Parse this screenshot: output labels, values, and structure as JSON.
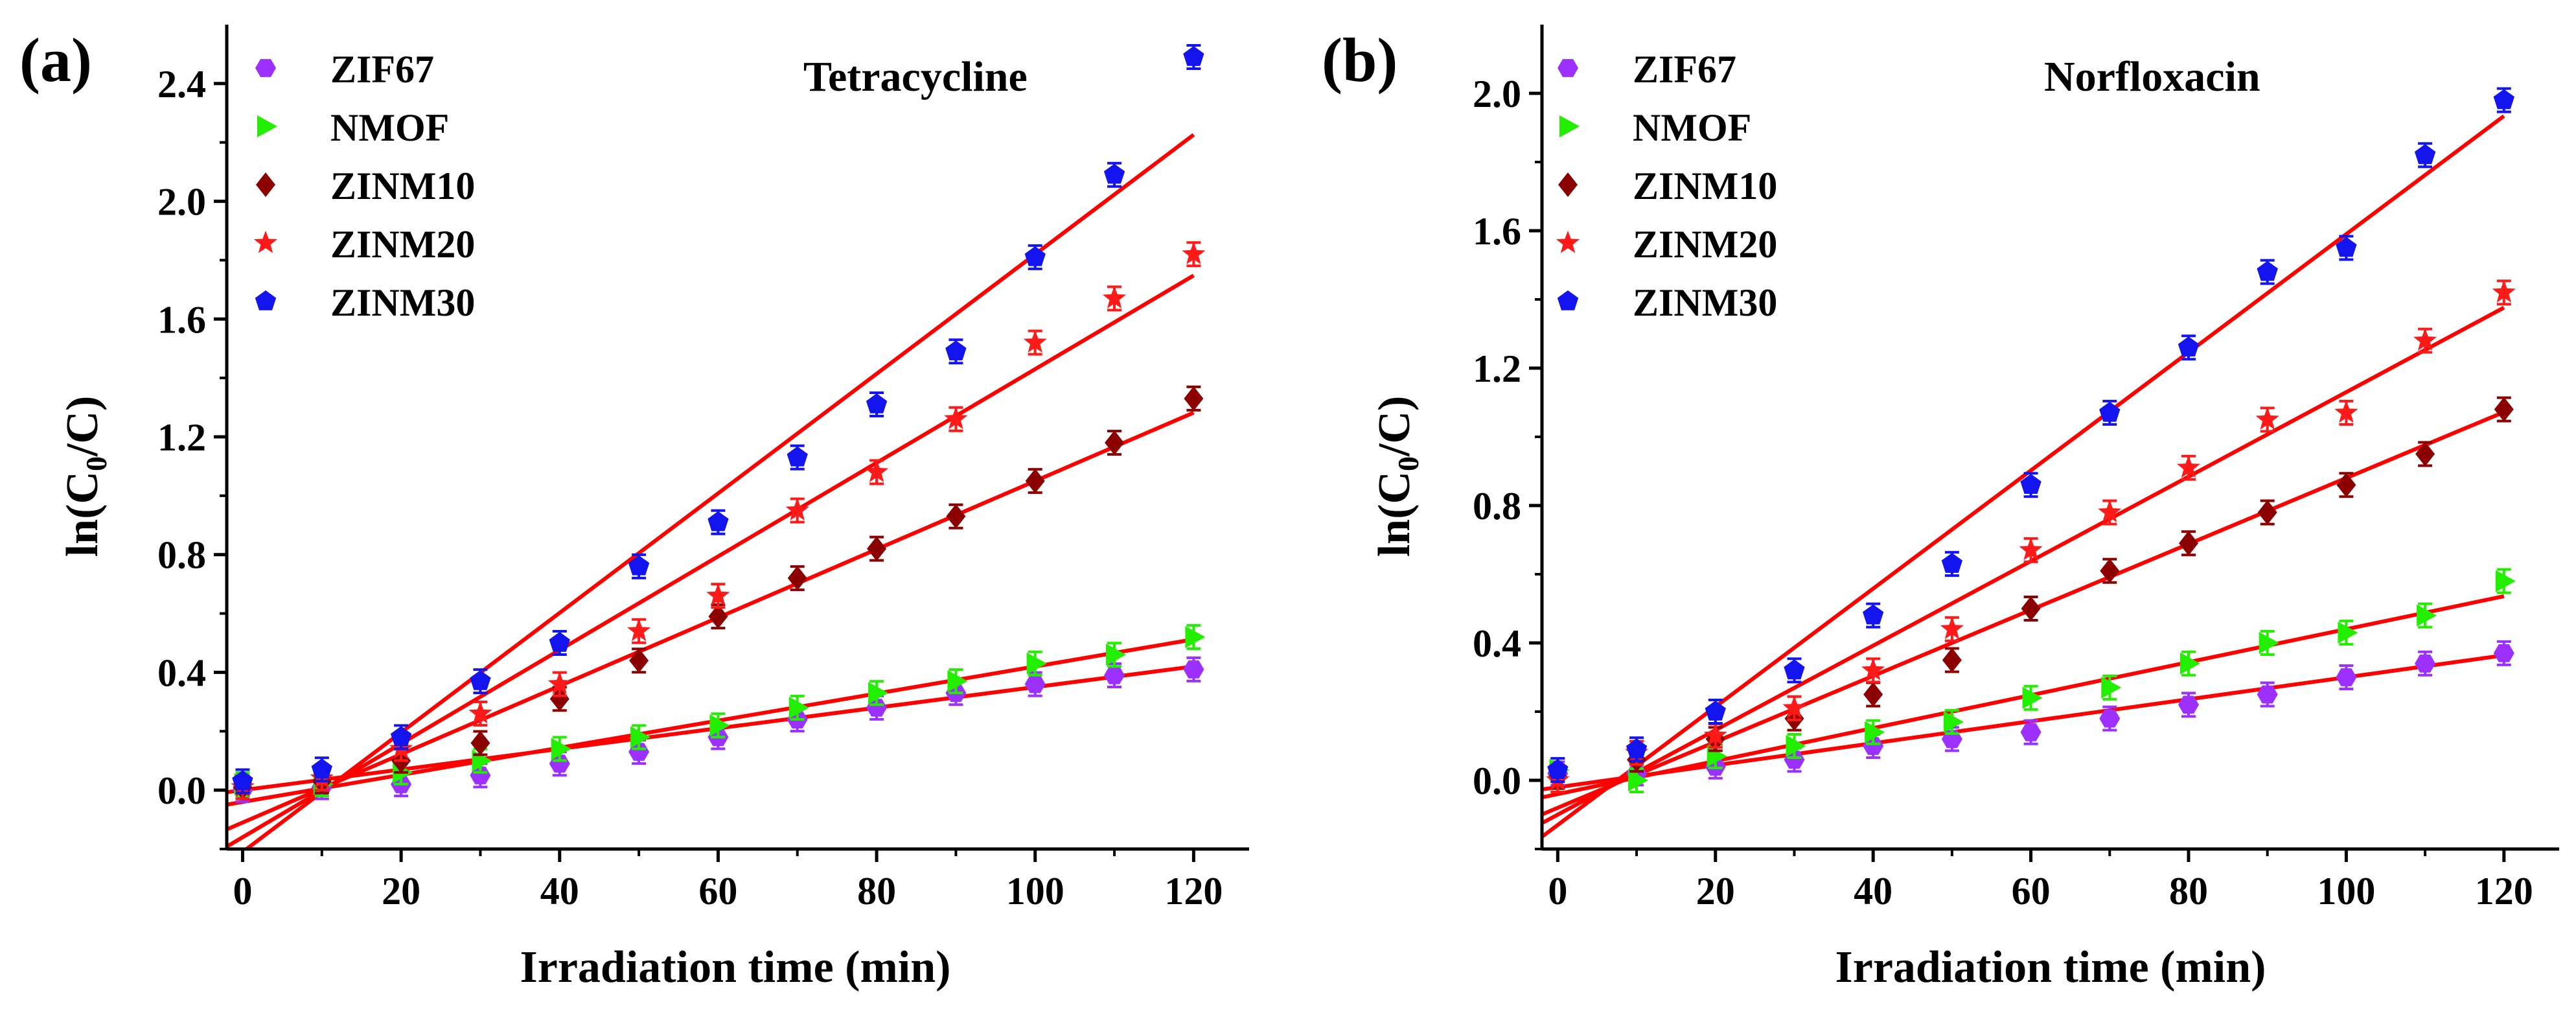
{
  "colors": {
    "fit_line": "#ff0000",
    "axis": "#000000",
    "ZIF67": "#9b30ff",
    "NMOF": "#22ee00",
    "ZINM10": "#8b0000",
    "ZINM20": "#ff1a1a",
    "ZINM30": "#1414ee"
  },
  "chart_data": [
    {
      "type": "scatter",
      "panel_label": "(a)",
      "title": "Tetracycline",
      "xlabel": "Irradiation time (min)",
      "ylabel_main": "ln(C",
      "ylabel_sub": "0",
      "ylabel_tail": "/C)",
      "xlim": [
        -2,
        127
      ],
      "ylim": [
        -0.2,
        2.6
      ],
      "xticks": [
        0,
        20,
        40,
        60,
        80,
        100,
        120
      ],
      "xtick_labels": [
        "0",
        "20",
        "40",
        "60",
        "80",
        "100",
        "120"
      ],
      "yticks": [
        0.0,
        0.4,
        0.8,
        1.2,
        1.6,
        2.0,
        2.4
      ],
      "ytick_labels": [
        "0.0",
        "0.4",
        "0.8",
        "1.2",
        "1.6",
        "2.0",
        "2.4"
      ],
      "legend_position": "top-left",
      "x": [
        0,
        10,
        20,
        30,
        40,
        50,
        60,
        70,
        80,
        90,
        100,
        110,
        120
      ],
      "series": [
        {
          "name": "ZIF67",
          "marker": "hexagon",
          "values": [
            0.0,
            0.01,
            0.02,
            0.05,
            0.09,
            0.13,
            0.18,
            0.24,
            0.28,
            0.33,
            0.36,
            0.39,
            0.41
          ],
          "fit": [
            0.0,
            0.0035
          ]
        },
        {
          "name": "NMOF",
          "marker": "triangle-right",
          "values": [
            0.02,
            0.02,
            0.06,
            0.1,
            0.14,
            0.18,
            0.22,
            0.28,
            0.33,
            0.37,
            0.43,
            0.46,
            0.52
          ],
          "fit": [
            -0.04,
            0.0046
          ]
        },
        {
          "name": "ZINM10",
          "marker": "diamond",
          "values": [
            0.01,
            0.03,
            0.1,
            0.16,
            0.31,
            0.44,
            0.59,
            0.72,
            0.82,
            0.93,
            1.05,
            1.18,
            1.33
          ],
          "fit": [
            -0.11,
            0.0116
          ]
        },
        {
          "name": "ZINM20",
          "marker": "star",
          "values": [
            0.01,
            0.04,
            0.14,
            0.26,
            0.36,
            0.54,
            0.66,
            0.95,
            1.08,
            1.26,
            1.52,
            1.67,
            1.82
          ],
          "fit": [
            -0.16,
            0.0159
          ]
        },
        {
          "name": "ZINM30",
          "marker": "pentagon",
          "values": [
            0.03,
            0.07,
            0.18,
            0.37,
            0.5,
            0.76,
            0.91,
            1.13,
            1.31,
            1.49,
            1.81,
            2.09,
            2.49
          ],
          "fit": [
            -0.21,
            0.0203
          ]
        }
      ]
    },
    {
      "type": "scatter",
      "panel_label": "(b)",
      "title": "Norfloxacin",
      "xlabel": "Irradiation time (min)",
      "ylabel_main": "ln(C",
      "ylabel_sub": "0",
      "ylabel_tail": "/C)",
      "xlim": [
        -2,
        127
      ],
      "ylim": [
        -0.2,
        2.2
      ],
      "xticks": [
        0,
        20,
        40,
        60,
        80,
        100,
        120
      ],
      "xtick_labels": [
        "0",
        "20",
        "40",
        "60",
        "80",
        "100",
        "120"
      ],
      "yticks": [
        0.0,
        0.4,
        0.8,
        1.2,
        1.6,
        2.0
      ],
      "ytick_labels": [
        "0.0",
        "0.4",
        "0.8",
        "1.2",
        "1.6",
        "2.0"
      ],
      "legend_position": "top-left",
      "x": [
        0,
        10,
        20,
        30,
        40,
        50,
        60,
        70,
        80,
        90,
        100,
        110,
        120
      ],
      "series": [
        {
          "name": "ZIF67",
          "marker": "hexagon",
          "values": [
            0.02,
            0.02,
            0.04,
            0.06,
            0.1,
            0.12,
            0.14,
            0.18,
            0.22,
            0.25,
            0.3,
            0.34,
            0.37
          ],
          "fit": [
            -0.02,
            0.0032
          ]
        },
        {
          "name": "NMOF",
          "marker": "triangle-right",
          "values": [
            0.03,
            0.0,
            0.07,
            0.1,
            0.14,
            0.17,
            0.24,
            0.27,
            0.34,
            0.4,
            0.43,
            0.48,
            0.58
          ],
          "fit": [
            -0.04,
            0.0048
          ]
        },
        {
          "name": "ZINM10",
          "marker": "diamond",
          "values": [
            0.01,
            0.06,
            0.12,
            0.18,
            0.25,
            0.35,
            0.5,
            0.61,
            0.69,
            0.78,
            0.86,
            0.95,
            1.08
          ],
          "fit": [
            -0.08,
            0.0096
          ]
        },
        {
          "name": "ZINM20",
          "marker": "star",
          "values": [
            0.0,
            0.08,
            0.13,
            0.21,
            0.32,
            0.44,
            0.67,
            0.78,
            0.91,
            1.05,
            1.07,
            1.28,
            1.42
          ],
          "fit": [
            -0.1,
            0.0123
          ]
        },
        {
          "name": "ZINM30",
          "marker": "pentagon",
          "values": [
            0.03,
            0.09,
            0.2,
            0.32,
            0.48,
            0.63,
            0.86,
            1.07,
            1.26,
            1.48,
            1.55,
            1.82,
            1.98
          ],
          "fit": [
            -0.13,
            0.0172
          ]
        }
      ]
    }
  ]
}
